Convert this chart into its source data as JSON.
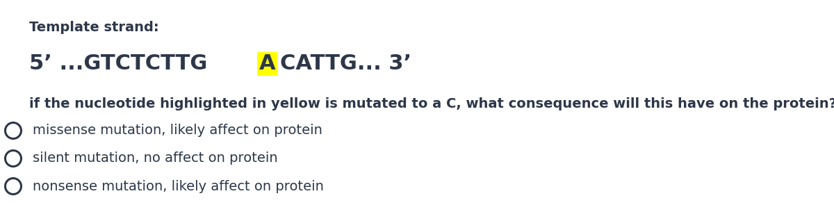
{
  "bg_color": "#ffffff",
  "text_color": "#2d3748",
  "title": "Template strand:",
  "title_fontsize": 14,
  "title_bold": true,
  "strand_before": "5’ ...GTCTCTTG",
  "strand_highlight": "A",
  "strand_after": "CATTG... 3’",
  "strand_fontsize": 22,
  "highlight_color": "#ffff00",
  "question": "if the nucleotide highlighted in yellow is mutated to a C, what consequence will this have on the protein?",
  "question_fontsize": 14,
  "question_bold": true,
  "options": [
    "missense mutation, likely affect on protein",
    "silent mutation, no affect on protein",
    "nonsense mutation, likely affect on protein"
  ],
  "options_fontsize": 14,
  "circle_color": "#2d3748",
  "circle_lw": 2.2
}
